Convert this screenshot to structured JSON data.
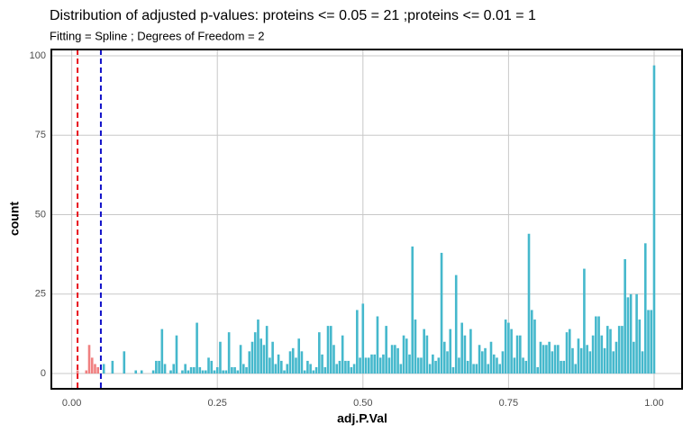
{
  "chart_data": {
    "type": "bar",
    "title": "Distribution of adjusted p-values:  proteins <= 0.05 = 21 ;proteins <= 0.01 = 1",
    "subtitle": "Fitting = Spline ; Degrees of Freedom = 2",
    "x_label": "adj.P.Val",
    "y_label": "count",
    "xlim": [
      -0.035,
      1.048
    ],
    "ylim": [
      -4.8,
      102
    ],
    "xticks": [
      {
        "value": 0,
        "label": "0.00"
      },
      {
        "value": 0.25,
        "label": "0.25"
      },
      {
        "value": 0.5,
        "label": "0.50"
      },
      {
        "value": 0.75,
        "label": "0.75"
      },
      {
        "value": 1,
        "label": "1.00"
      }
    ],
    "yticks": [
      0,
      25,
      50,
      75,
      100
    ],
    "grid": true,
    "vlines": [
      {
        "value": 0.01,
        "color": "#e8141c"
      },
      {
        "value": 0.05,
        "color": "#1010c8"
      }
    ],
    "series": [
      {
        "color": "#f08080",
        "x": [
          0.01,
          0.025,
          0.03,
          0.035,
          0.04,
          0.045
        ],
        "values": [
          1,
          1,
          9,
          5,
          3,
          2
        ]
      },
      {
        "color": "#45b8cc",
        "x": [
          0.055,
          0.07,
          0.09,
          0.11,
          0.12,
          0.14,
          0.145,
          0.15,
          0.155,
          0.16,
          0.17,
          0.175,
          0.18,
          0.19,
          0.195,
          0.2,
          0.205,
          0.21,
          0.215,
          0.22,
          0.225,
          0.23,
          0.235,
          0.24,
          0.245,
          0.25,
          0.255,
          0.26,
          0.265,
          0.27,
          0.275,
          0.28,
          0.285,
          0.29,
          0.295,
          0.3,
          0.305,
          0.31,
          0.315,
          0.32,
          0.325,
          0.33,
          0.335,
          0.34,
          0.345,
          0.35,
          0.355,
          0.36,
          0.365,
          0.37,
          0.375,
          0.38,
          0.385,
          0.39,
          0.395,
          0.4,
          0.405,
          0.41,
          0.415,
          0.42,
          0.425,
          0.43,
          0.435,
          0.44,
          0.445,
          0.45,
          0.455,
          0.46,
          0.465,
          0.47,
          0.475,
          0.48,
          0.485,
          0.49,
          0.495,
          0.5,
          0.505,
          0.51,
          0.515,
          0.52,
          0.525,
          0.53,
          0.535,
          0.54,
          0.545,
          0.55,
          0.555,
          0.56,
          0.565,
          0.57,
          0.575,
          0.58,
          0.585,
          0.59,
          0.595,
          0.6,
          0.605,
          0.61,
          0.615,
          0.62,
          0.625,
          0.63,
          0.635,
          0.64,
          0.645,
          0.65,
          0.655,
          0.66,
          0.665,
          0.67,
          0.675,
          0.68,
          0.685,
          0.69,
          0.695,
          0.7,
          0.705,
          0.71,
          0.715,
          0.72,
          0.725,
          0.73,
          0.735,
          0.74,
          0.745,
          0.75,
          0.755,
          0.76,
          0.765,
          0.77,
          0.775,
          0.78,
          0.785,
          0.79,
          0.795,
          0.8,
          0.805,
          0.81,
          0.815,
          0.82,
          0.825,
          0.83,
          0.835,
          0.84,
          0.845,
          0.85,
          0.855,
          0.86,
          0.865,
          0.87,
          0.875,
          0.88,
          0.885,
          0.89,
          0.895,
          0.9,
          0.905,
          0.91,
          0.915,
          0.92,
          0.925,
          0.93,
          0.935,
          0.94,
          0.945,
          0.95,
          0.955,
          0.96,
          0.965,
          0.97,
          0.975,
          0.98,
          0.985,
          0.99,
          0.995,
          1
        ],
        "values": [
          3,
          4,
          7,
          1,
          1,
          1,
          4,
          4,
          14,
          3,
          1,
          3,
          12,
          1,
          3,
          1,
          2,
          2,
          16,
          2,
          1,
          1,
          5,
          4,
          1,
          2,
          10,
          1,
          1,
          13,
          2,
          2,
          1,
          9,
          3,
          2,
          7,
          10,
          13,
          17,
          11,
          9,
          15,
          5,
          10,
          3,
          6,
          4,
          1,
          3,
          7,
          8,
          5,
          11,
          7,
          1,
          4,
          3,
          1,
          2,
          13,
          6,
          2,
          15,
          15,
          9,
          3,
          4,
          12,
          4,
          4,
          2,
          3,
          20,
          5,
          22,
          5,
          5,
          6,
          6,
          18,
          5,
          6,
          15,
          5,
          9,
          9,
          8,
          3,
          12,
          11,
          6,
          40,
          17,
          5,
          5,
          14,
          12,
          3,
          6,
          4,
          5,
          38,
          10,
          7,
          14,
          2,
          31,
          5,
          16,
          12,
          4,
          14,
          3,
          3,
          9,
          7,
          8,
          3,
          10,
          6,
          5,
          3,
          7,
          17,
          16,
          14,
          5,
          12,
          12,
          5,
          4,
          44,
          20,
          17,
          2,
          10,
          9,
          9,
          10,
          7,
          9,
          9,
          4,
          4,
          13,
          14,
          8,
          3,
          11,
          8,
          33,
          9,
          7,
          12,
          18,
          18,
          12,
          8,
          15,
          14,
          7,
          10,
          15,
          15,
          36,
          24,
          25,
          10,
          25,
          17,
          7,
          41,
          20,
          20,
          97
        ]
      }
    ]
  }
}
